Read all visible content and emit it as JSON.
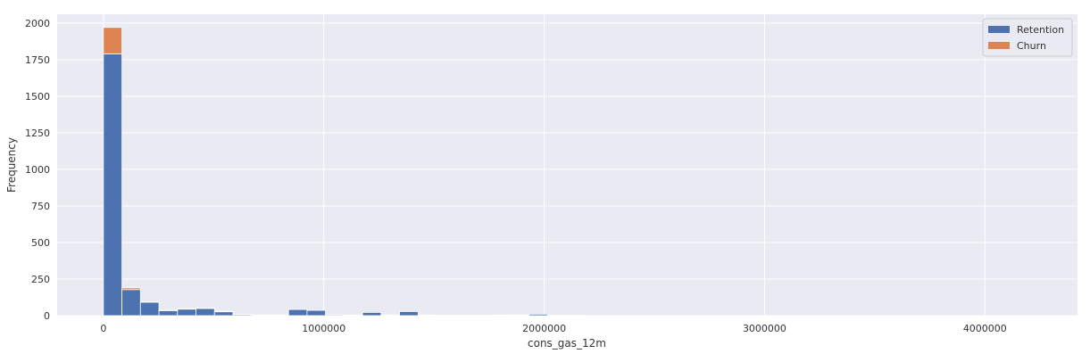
{
  "chart_data": {
    "type": "bar",
    "xlabel": "cons_gas_12m",
    "ylabel": "Frequency",
    "xlim": [
      -210000,
      4420000
    ],
    "ylim": [
      0,
      2060
    ],
    "xticks": [
      0,
      1000000,
      2000000,
      3000000,
      4000000
    ],
    "yticks": [
      0,
      250,
      500,
      750,
      1000,
      1250,
      1500,
      1750,
      2000
    ],
    "grid": true,
    "legend_position": "top-right",
    "bin_width": 84000,
    "series": [
      {
        "name": "Retention",
        "color": "#4c72b0",
        "bars": [
          {
            "x0": 0,
            "x1": 84000,
            "value": 1790
          },
          {
            "x0": 84000,
            "x1": 168000,
            "value": 178
          },
          {
            "x0": 168000,
            "x1": 252000,
            "value": 92
          },
          {
            "x0": 252000,
            "x1": 336000,
            "value": 35
          },
          {
            "x0": 336000,
            "x1": 420000,
            "value": 45
          },
          {
            "x0": 420000,
            "x1": 504000,
            "value": 50
          },
          {
            "x0": 504000,
            "x1": 588000,
            "value": 27
          },
          {
            "x0": 588000,
            "x1": 672000,
            "value": 9
          },
          {
            "x0": 672000,
            "x1": 756000,
            "value": 5
          },
          {
            "x0": 756000,
            "x1": 840000,
            "value": 5
          },
          {
            "x0": 840000,
            "x1": 924000,
            "value": 42
          },
          {
            "x0": 924000,
            "x1": 1008000,
            "value": 36
          },
          {
            "x0": 1008000,
            "x1": 1092000,
            "value": 6
          },
          {
            "x0": 1092000,
            "x1": 1176000,
            "value": 4
          },
          {
            "x0": 1176000,
            "x1": 1260000,
            "value": 22
          },
          {
            "x0": 1260000,
            "x1": 1344000,
            "value": 5
          },
          {
            "x0": 1344000,
            "x1": 1428000,
            "value": 28
          },
          {
            "x0": 1428000,
            "x1": 1512000,
            "value": 4
          },
          {
            "x0": 1512000,
            "x1": 1596000,
            "value": 3
          },
          {
            "x0": 1596000,
            "x1": 1680000,
            "value": 3
          },
          {
            "x0": 1680000,
            "x1": 1764000,
            "value": 3
          },
          {
            "x0": 1764000,
            "x1": 1848000,
            "value": 4
          },
          {
            "x0": 1848000,
            "x1": 1932000,
            "value": 5
          },
          {
            "x0": 1932000,
            "x1": 2016000,
            "value": 10
          },
          {
            "x0": 2016000,
            "x1": 2100000,
            "value": 2
          },
          {
            "x0": 2100000,
            "x1": 2184000,
            "value": 2
          }
        ]
      },
      {
        "name": "Churn",
        "color": "#dd8452",
        "bars": [
          {
            "x0": 0,
            "x1": 84000,
            "value": 180
          },
          {
            "x0": 84000,
            "x1": 168000,
            "value": 12
          },
          {
            "x0": 168000,
            "x1": 252000,
            "value": 3
          },
          {
            "x0": 252000,
            "x1": 336000,
            "value": 2
          },
          {
            "x0": 336000,
            "x1": 420000,
            "value": 2
          },
          {
            "x0": 420000,
            "x1": 504000,
            "value": 2
          },
          {
            "x0": 504000,
            "x1": 588000,
            "value": 2
          },
          {
            "x0": 588000,
            "x1": 672000,
            "value": 1
          }
        ]
      }
    ]
  }
}
